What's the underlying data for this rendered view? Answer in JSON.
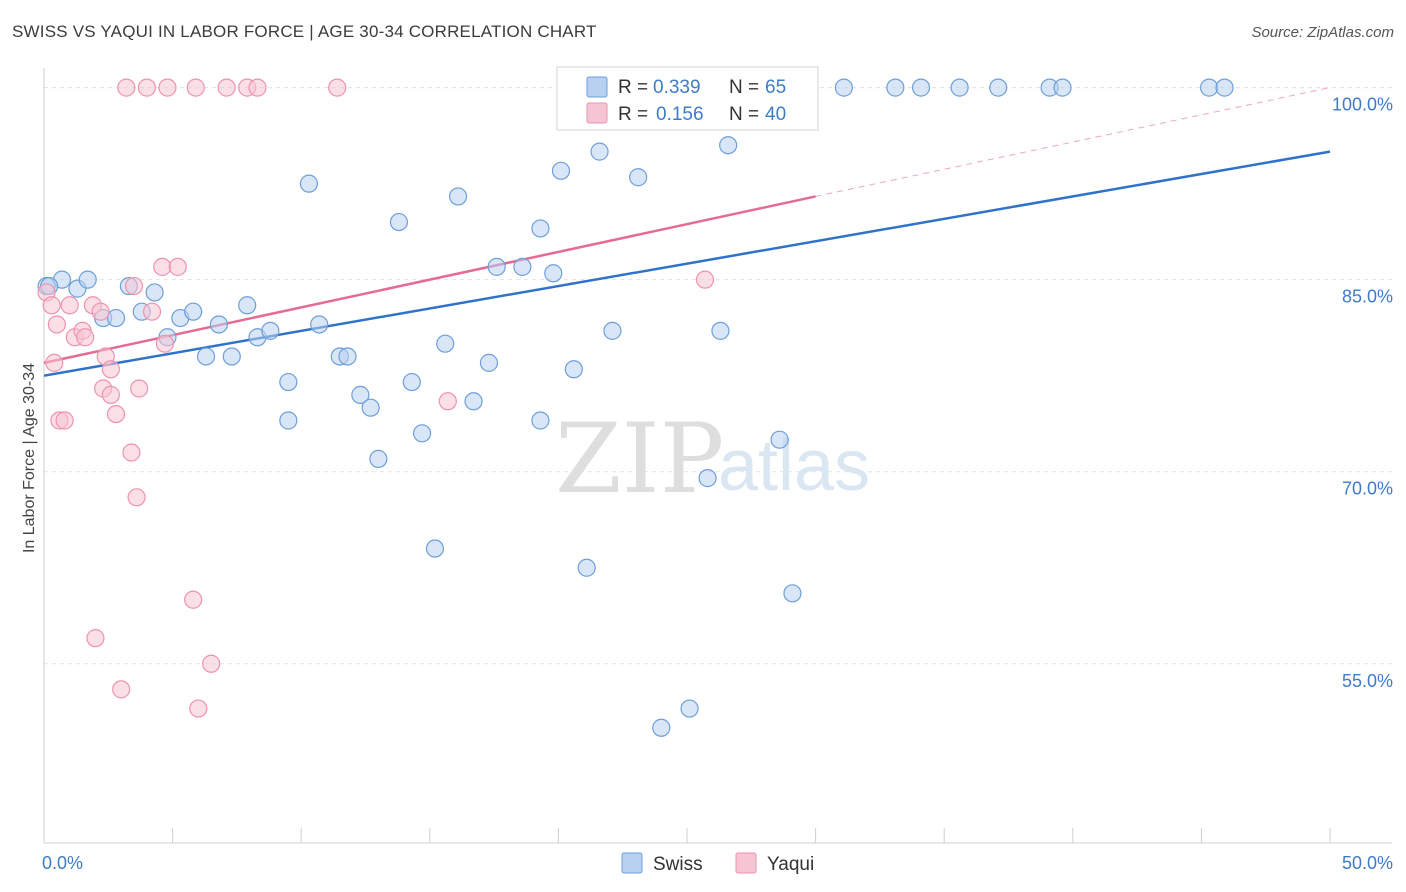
{
  "title": "SWISS VS YAQUI IN LABOR FORCE | AGE 30-34 CORRELATION CHART",
  "source": "Source: ZipAtlas.com",
  "watermark": {
    "zip": "ZIP",
    "atlas": "atlas"
  },
  "colors": {
    "swiss_fill": "#b8d1f0",
    "swiss_stroke": "#6e9fd8",
    "swiss_line": "#2f72c9",
    "yaqui_fill": "#f7c4d3",
    "yaqui_stroke": "#ee93ad",
    "yaqui_line": "#e56b93",
    "axis_text": "#3d7cc9",
    "grid": "#e3e3e3"
  },
  "legend": {
    "r_label": "R =",
    "n_label": "N =",
    "rows": [
      {
        "series": "Swiss",
        "r": "0.339",
        "n": "65"
      },
      {
        "series": "Yaqui",
        "r": "0.156",
        "n": "40"
      }
    ]
  },
  "bottom_legend": [
    "Swiss",
    "Yaqui"
  ],
  "chart_data": {
    "type": "scatter",
    "title": "SWISS VS YAQUI IN LABOR FORCE | AGE 30-34 CORRELATION CHART",
    "xlabel": "",
    "ylabel": "In Labor Force | Age 30-34",
    "xlim": [
      0,
      50
    ],
    "ylim": [
      41,
      102
    ],
    "x_ticks": [
      0,
      5,
      10,
      15,
      20,
      25,
      30,
      35,
      40,
      45,
      50
    ],
    "x_tick_labels": {
      "0": "0.0%",
      "50": "50.0%"
    },
    "y_ticks": [
      55,
      70,
      85,
      100
    ],
    "y_tick_labels": [
      "55.0%",
      "70.0%",
      "85.0%",
      "100.0%"
    ],
    "series": [
      {
        "name": "Swiss",
        "r": 0.339,
        "n": 65,
        "trend": {
          "x0": 0,
          "y0": 77.5,
          "x1": 50,
          "y1": 95.0
        },
        "points": [
          [
            0.1,
            84.5
          ],
          [
            0.7,
            85.0
          ],
          [
            1.3,
            84.3
          ],
          [
            1.7,
            85.0
          ],
          [
            2.3,
            82.0
          ],
          [
            2.8,
            82.0
          ],
          [
            3.3,
            84.5
          ],
          [
            3.8,
            82.5
          ],
          [
            4.3,
            84.0
          ],
          [
            4.8,
            80.5
          ],
          [
            5.3,
            82.0
          ],
          [
            5.8,
            82.5
          ],
          [
            6.3,
            79.0
          ],
          [
            6.8,
            81.5
          ],
          [
            7.3,
            79.0
          ],
          [
            7.9,
            83.0
          ],
          [
            8.3,
            80.5
          ],
          [
            8.8,
            81.0
          ],
          [
            9.5,
            77.0
          ],
          [
            9.5,
            74.0
          ],
          [
            10.3,
            92.5
          ],
          [
            10.7,
            81.5
          ],
          [
            11.5,
            79.0
          ],
          [
            11.8,
            79.0
          ],
          [
            12.3,
            76.0
          ],
          [
            12.7,
            75.0
          ],
          [
            13.0,
            71.0
          ],
          [
            13.8,
            89.5
          ],
          [
            14.3,
            77.0
          ],
          [
            14.7,
            73.0
          ],
          [
            15.2,
            64.0
          ],
          [
            15.6,
            80.0
          ],
          [
            16.1,
            91.5
          ],
          [
            16.7,
            75.5
          ],
          [
            17.3,
            78.5
          ],
          [
            17.6,
            86.0
          ],
          [
            18.6,
            86.0
          ],
          [
            19.3,
            89.0
          ],
          [
            19.3,
            74.0
          ],
          [
            19.8,
            85.5
          ],
          [
            20.1,
            93.5
          ],
          [
            20.6,
            78.0
          ],
          [
            21.1,
            62.5
          ],
          [
            21.6,
            95.0
          ],
          [
            22.1,
            81.0
          ],
          [
            22.6,
            100.0
          ],
          [
            23.1,
            93.0
          ],
          [
            24.0,
            50.0
          ],
          [
            25.1,
            51.5
          ],
          [
            25.3,
            100.0
          ],
          [
            25.8,
            69.5
          ],
          [
            26.3,
            81.0
          ],
          [
            26.6,
            95.5
          ],
          [
            28.6,
            72.5
          ],
          [
            29.1,
            60.5
          ],
          [
            31.1,
            100.0
          ],
          [
            33.1,
            100.0
          ],
          [
            34.1,
            100.0
          ],
          [
            35.6,
            100.0
          ],
          [
            37.1,
            100.0
          ],
          [
            39.1,
            100.0
          ],
          [
            39.6,
            100.0
          ],
          [
            45.3,
            100.0
          ],
          [
            45.9,
            100.0
          ],
          [
            0.2,
            84.5
          ]
        ]
      },
      {
        "name": "Yaqui",
        "r": 0.156,
        "n": 40,
        "trend": {
          "x0": 0,
          "y0": 78.5,
          "x1": 30,
          "y1": 91.5,
          "dashed_to_x": 50,
          "dashed_to_y": 100.0
        },
        "points": [
          [
            0.1,
            84.0
          ],
          [
            0.3,
            83.0
          ],
          [
            0.4,
            78.5
          ],
          [
            0.5,
            81.5
          ],
          [
            0.6,
            74.0
          ],
          [
            0.8,
            74.0
          ],
          [
            1.0,
            83.0
          ],
          [
            1.2,
            80.5
          ],
          [
            1.5,
            81.0
          ],
          [
            1.6,
            80.5
          ],
          [
            1.9,
            83.0
          ],
          [
            2.0,
            57.0
          ],
          [
            2.2,
            82.5
          ],
          [
            2.3,
            76.5
          ],
          [
            2.4,
            79.0
          ],
          [
            2.6,
            78.0
          ],
          [
            2.6,
            76.0
          ],
          [
            2.8,
            74.5
          ],
          [
            3.0,
            53.0
          ],
          [
            3.2,
            100.0
          ],
          [
            3.4,
            71.5
          ],
          [
            3.5,
            84.5
          ],
          [
            3.6,
            68.0
          ],
          [
            3.7,
            76.5
          ],
          [
            4.0,
            100.0
          ],
          [
            4.2,
            82.5
          ],
          [
            4.6,
            86.0
          ],
          [
            4.7,
            80.0
          ],
          [
            4.8,
            100.0
          ],
          [
            5.2,
            86.0
          ],
          [
            5.8,
            60.0
          ],
          [
            5.9,
            100.0
          ],
          [
            6.0,
            51.5
          ],
          [
            6.5,
            55.0
          ],
          [
            7.1,
            100.0
          ],
          [
            7.9,
            100.0
          ],
          [
            8.3,
            100.0
          ],
          [
            11.4,
            100.0
          ],
          [
            15.7,
            75.5
          ],
          [
            25.7,
            85.0
          ]
        ]
      }
    ]
  }
}
